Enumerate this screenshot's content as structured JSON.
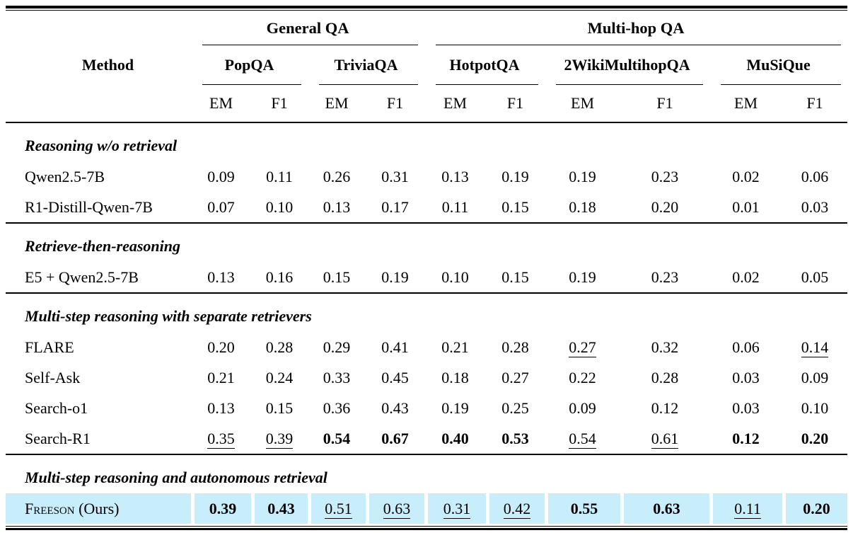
{
  "paper_table": {
    "highlight_color": "#c9eefb",
    "header": {
      "method_label": "Method",
      "groups": [
        {
          "label": "General QA",
          "datasets": [
            "PopQA",
            "TriviaQA"
          ]
        },
        {
          "label": "Multi-hop QA",
          "datasets": [
            "HotpotQA",
            "2WikiMultihopQA",
            "MuSiQue"
          ]
        }
      ],
      "metrics": [
        "EM",
        "F1"
      ]
    },
    "sections": [
      {
        "title": "Reasoning w/o retrieval",
        "rows": [
          {
            "method": "Qwen2.5-7B",
            "cells": [
              {
                "v": "0.09"
              },
              {
                "v": "0.11"
              },
              {
                "v": "0.26"
              },
              {
                "v": "0.31"
              },
              {
                "v": "0.13"
              },
              {
                "v": "0.19"
              },
              {
                "v": "0.19"
              },
              {
                "v": "0.23"
              },
              {
                "v": "0.02"
              },
              {
                "v": "0.06"
              }
            ]
          },
          {
            "method": "R1-Distill-Qwen-7B",
            "cells": [
              {
                "v": "0.07"
              },
              {
                "v": "0.10"
              },
              {
                "v": "0.13"
              },
              {
                "v": "0.17"
              },
              {
                "v": "0.11"
              },
              {
                "v": "0.15"
              },
              {
                "v": "0.18"
              },
              {
                "v": "0.20"
              },
              {
                "v": "0.01"
              },
              {
                "v": "0.03"
              }
            ]
          }
        ]
      },
      {
        "title": "Retrieve-then-reasoning",
        "rows": [
          {
            "method": "E5 + Qwen2.5-7B",
            "cells": [
              {
                "v": "0.13"
              },
              {
                "v": "0.16"
              },
              {
                "v": "0.15"
              },
              {
                "v": "0.19"
              },
              {
                "v": "0.10"
              },
              {
                "v": "0.15"
              },
              {
                "v": "0.19"
              },
              {
                "v": "0.23"
              },
              {
                "v": "0.02"
              },
              {
                "v": "0.05"
              }
            ]
          }
        ]
      },
      {
        "title": "Multi-step reasoning with separate retrievers",
        "rows": [
          {
            "method": "FLARE",
            "cells": [
              {
                "v": "0.20"
              },
              {
                "v": "0.28"
              },
              {
                "v": "0.29"
              },
              {
                "v": "0.41"
              },
              {
                "v": "0.21"
              },
              {
                "v": "0.28"
              },
              {
                "v": "0.27",
                "s": "u"
              },
              {
                "v": "0.32"
              },
              {
                "v": "0.06"
              },
              {
                "v": "0.14",
                "s": "u"
              }
            ]
          },
          {
            "method": "Self-Ask",
            "cells": [
              {
                "v": "0.21"
              },
              {
                "v": "0.24"
              },
              {
                "v": "0.33"
              },
              {
                "v": "0.45"
              },
              {
                "v": "0.18"
              },
              {
                "v": "0.27"
              },
              {
                "v": "0.22"
              },
              {
                "v": "0.28"
              },
              {
                "v": "0.03"
              },
              {
                "v": "0.09"
              }
            ]
          },
          {
            "method": "Search-o1",
            "cells": [
              {
                "v": "0.13"
              },
              {
                "v": "0.15"
              },
              {
                "v": "0.36"
              },
              {
                "v": "0.43"
              },
              {
                "v": "0.19"
              },
              {
                "v": "0.25"
              },
              {
                "v": "0.09"
              },
              {
                "v": "0.12"
              },
              {
                "v": "0.03"
              },
              {
                "v": "0.10"
              }
            ]
          },
          {
            "method": "Search-R1",
            "cells": [
              {
                "v": "0.35",
                "s": "u"
              },
              {
                "v": "0.39",
                "s": "u"
              },
              {
                "v": "0.54",
                "s": "b"
              },
              {
                "v": "0.67",
                "s": "b"
              },
              {
                "v": "0.40",
                "s": "b"
              },
              {
                "v": "0.53",
                "s": "b"
              },
              {
                "v": "0.54",
                "s": "u"
              },
              {
                "v": "0.61",
                "s": "u"
              },
              {
                "v": "0.12",
                "s": "b"
              },
              {
                "v": "0.20",
                "s": "b"
              }
            ]
          }
        ]
      },
      {
        "title": "Multi-step reasoning and autonomous retrieval",
        "rows": [
          {
            "method_smallcaps": "Freeson",
            "method_suffix": " (Ours)",
            "highlight": true,
            "cells": [
              {
                "v": "0.39",
                "s": "b"
              },
              {
                "v": "0.43",
                "s": "b"
              },
              {
                "v": "0.51",
                "s": "u"
              },
              {
                "v": "0.63",
                "s": "u"
              },
              {
                "v": "0.31",
                "s": "u"
              },
              {
                "v": "0.42",
                "s": "u"
              },
              {
                "v": "0.55",
                "s": "b"
              },
              {
                "v": "0.63",
                "s": "b"
              },
              {
                "v": "0.11",
                "s": "u"
              },
              {
                "v": "0.20",
                "s": "b"
              }
            ]
          }
        ]
      }
    ]
  }
}
